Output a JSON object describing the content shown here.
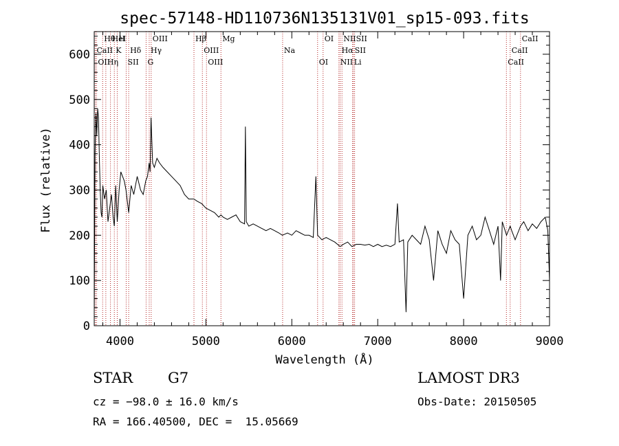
{
  "chart_data": {
    "type": "line",
    "title": "spec-57148-HD110736N135131V01_sp15-093.fits",
    "xlabel": "Wavelength (Å)",
    "ylabel": "Flux (relative)",
    "xlim": [
      3700,
      9000
    ],
    "ylim": [
      0,
      650
    ],
    "x_ticks": [
      4000,
      5000,
      6000,
      7000,
      8000,
      9000
    ],
    "y_ticks": [
      0,
      100,
      200,
      300,
      400,
      500,
      600
    ],
    "grid": false,
    "legend": "none",
    "line_color": "#000000",
    "marker_color": "#b22222",
    "series": [
      {
        "x": [
          3700,
          3710,
          3720,
          3730,
          3740,
          3750,
          3760,
          3770,
          3780,
          3790,
          3800,
          3820,
          3840,
          3860,
          3880,
          3900,
          3920,
          3934,
          3950,
          3968,
          3990,
          4010,
          4030,
          4050,
          4070,
          4101,
          4130,
          4160,
          4200,
          4240,
          4270,
          4300,
          4320,
          4340,
          4350,
          4361,
          4380,
          4400,
          4430,
          4460,
          4500,
          4550,
          4600,
          4650,
          4700,
          4750,
          4800,
          4861,
          4900,
          4950,
          5000,
          5050,
          5100,
          5150,
          5175,
          5200,
          5250,
          5300,
          5350,
          5400,
          5450,
          5460,
          5470,
          5500,
          5550,
          5600,
          5650,
          5700,
          5750,
          5800,
          5850,
          5890,
          5950,
          6000,
          6050,
          6100,
          6150,
          6200,
          6250,
          6280,
          6300,
          6350,
          6400,
          6450,
          6500,
          6563,
          6600,
          6650,
          6700,
          6750,
          6800,
          6850,
          6900,
          6950,
          7000,
          7050,
          7100,
          7150,
          7200,
          7230,
          7250,
          7300,
          7330,
          7350,
          7400,
          7450,
          7500,
          7550,
          7600,
          7650,
          7700,
          7750,
          7800,
          7850,
          7900,
          7950,
          8000,
          8050,
          8100,
          8150,
          8200,
          8250,
          8300,
          8350,
          8400,
          8430,
          8450,
          8500,
          8542,
          8560,
          8600,
          8662,
          8700,
          8750,
          8800,
          8850,
          8900,
          8950,
          8980,
          9000
        ],
        "y": [
          30,
          380,
          470,
          420,
          480,
          460,
          370,
          300,
          250,
          240,
          310,
          280,
          300,
          230,
          260,
          290,
          240,
          220,
          310,
          230,
          300,
          340,
          330,
          320,
          300,
          250,
          310,
          290,
          330,
          300,
          290,
          320,
          330,
          360,
          340,
          460,
          360,
          350,
          370,
          360,
          350,
          340,
          330,
          320,
          310,
          290,
          280,
          280,
          275,
          270,
          260,
          255,
          250,
          240,
          245,
          240,
          235,
          240,
          245,
          230,
          225,
          440,
          230,
          220,
          225,
          220,
          215,
          210,
          215,
          210,
          205,
          200,
          205,
          200,
          210,
          205,
          200,
          200,
          195,
          330,
          200,
          190,
          195,
          190,
          185,
          175,
          180,
          185,
          175,
          180,
          180,
          178,
          180,
          175,
          180,
          175,
          178,
          175,
          180,
          270,
          185,
          190,
          30,
          185,
          200,
          190,
          180,
          220,
          190,
          100,
          210,
          180,
          160,
          210,
          190,
          180,
          60,
          200,
          220,
          190,
          200,
          240,
          210,
          180,
          220,
          100,
          230,
          200,
          220,
          210,
          190,
          220,
          230,
          210,
          225,
          215,
          230,
          240,
          210,
          100
        ]
      }
    ],
    "lines": [
      {
        "label": "Hθ",
        "x": 3798
      },
      {
        "label": "CaII",
        "x": 3712
      },
      {
        "label": "OII",
        "x": 3727
      },
      {
        "label": "HeI",
        "x": 3889
      },
      {
        "label": "K",
        "x": 3934
      },
      {
        "label": "Hη",
        "x": 3835
      },
      {
        "label": "H",
        "x": 3968
      },
      {
        "label": "Hδ",
        "x": 4101
      },
      {
        "label": "SII",
        "x": 4072
      },
      {
        "label": "OIII",
        "x": 4363
      },
      {
        "label": "Hγ",
        "x": 4340
      },
      {
        "label": "G",
        "x": 4304
      },
      {
        "label": "Hβ",
        "x": 4861
      },
      {
        "label": "OIII",
        "x": 4959
      },
      {
        "label": "OIII",
        "x": 5007
      },
      {
        "label": "Mg",
        "x": 5175
      },
      {
        "label": "Na",
        "x": 5893
      },
      {
        "label": "OI",
        "x": 6300
      },
      {
        "label": "OI",
        "x": 6364
      },
      {
        "label": "Hα",
        "x": 6563
      },
      {
        "label": "NII",
        "x": 6548
      },
      {
        "label": "NII",
        "x": 6584
      },
      {
        "label": "SII",
        "x": 6716
      },
      {
        "label": "Li",
        "x": 6708
      },
      {
        "label": "SII",
        "x": 6731
      },
      {
        "label": "CaII",
        "x": 8542
      },
      {
        "label": "CaII",
        "x": 8498
      },
      {
        "label": "CaII",
        "x": 8662
      }
    ]
  },
  "footer": {
    "object_class": "STAR",
    "subclass": "G7",
    "survey": "LAMOST DR3",
    "redshift": "cz = −98.0 ± 16.0 km/s",
    "obs_date": "Obs-Date: 20150505",
    "coords": "RA = 166.40500, DEC =  15.05669"
  }
}
